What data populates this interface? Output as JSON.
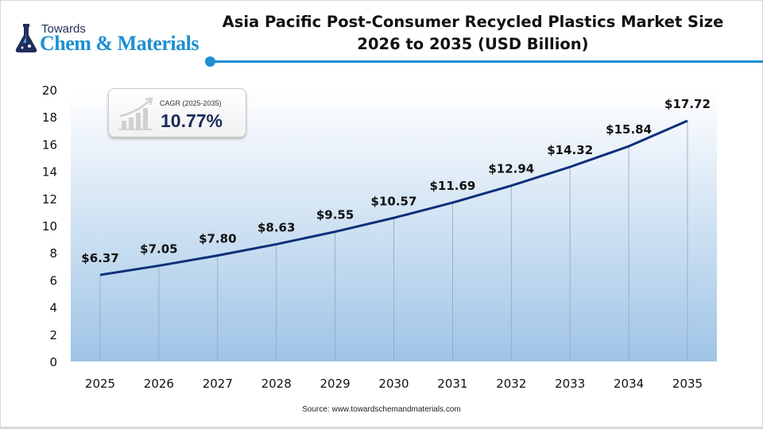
{
  "logo": {
    "top": "Towards",
    "main": "Chem & Materials"
  },
  "title_line1": "Asia Pacific Post-Consumer Recycled Plastics Market Size",
  "title_line2": "2026 to 2035 (USD Billion)",
  "cagr": {
    "label": "CAGR (2025-2035)",
    "value": "10.77%",
    "icon": "growth-bar-chart-icon"
  },
  "source": "Source: www.towardschemandmaterials.com",
  "colors": {
    "line": "#0d2f7a",
    "accent": "#1e8fd0",
    "area_top": "#ffffff",
    "area_bottom": "#9fc4e6"
  },
  "chart_data": {
    "type": "line",
    "title": "Asia Pacific Post-Consumer Recycled Plastics Market Size 2026 to 2035 (USD Billion)",
    "categories": [
      "2025",
      "2026",
      "2027",
      "2028",
      "2029",
      "2030",
      "2031",
      "2032",
      "2033",
      "2034",
      "2035"
    ],
    "values": [
      6.37,
      7.05,
      7.8,
      8.63,
      9.55,
      10.57,
      11.69,
      12.94,
      14.32,
      15.84,
      17.72
    ],
    "data_labels": [
      "$6.37",
      "$7.05",
      "$7.80",
      "$8.63",
      "$9.55",
      "$10.57",
      "$11.69",
      "$12.94",
      "$14.32",
      "$15.84",
      "$17.72"
    ],
    "yticks": [
      "0",
      "2",
      "4",
      "6",
      "8",
      "10",
      "12",
      "14",
      "16",
      "18",
      "20"
    ],
    "ylim": [
      0,
      20
    ],
    "xlabel": "",
    "ylabel": "",
    "grid": "vertical lines at categories",
    "legend": "none"
  }
}
